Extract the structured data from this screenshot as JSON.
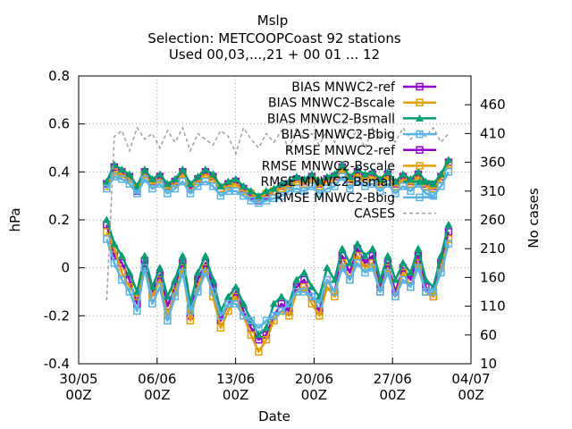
{
  "chart_data": {
    "type": "line",
    "title": "Mslp",
    "subtitle_line1": "Selection: METCOOPCoast     92 stations",
    "subtitle_line2": "Used 00,03,...,21 + 00 01 ... 12",
    "xlabel": "Date",
    "ylabel": "hPa",
    "y2label": "No cases",
    "ylim": [
      -0.4,
      0.8
    ],
    "yticks": [
      "-0.4",
      "-0.2",
      "0",
      "0.2",
      "0.4",
      "0.6",
      "0.8"
    ],
    "y2lim": [
      10,
      510
    ],
    "y2ticks": [
      "10",
      "60",
      "110",
      "160",
      "210",
      "260",
      "310",
      "360",
      "410",
      "460"
    ],
    "xlim": [
      "2018-05-30",
      "2018-07-04"
    ],
    "xticks": [
      {
        "line1": "30/05",
        "line2": "00Z"
      },
      {
        "line1": "06/06",
        "line2": "00Z"
      },
      {
        "line1": "13/06",
        "line2": "00Z"
      },
      {
        "line1": "20/06",
        "line2": "00Z"
      },
      {
        "line1": "27/06",
        "line2": "00Z"
      },
      {
        "line1": "04/07",
        "line2": "00Z"
      }
    ],
    "grid": true,
    "legend_position": "top-right",
    "series": [
      {
        "name": "BIAS MNWC2-ref",
        "color": "#9400d3",
        "marker": "open-square",
        "axis": "left",
        "values": [
          0.18,
          0.05,
          0.02,
          -0.05,
          -0.15,
          0.03,
          -0.1,
          -0.03,
          -0.16,
          -0.08,
          0.02,
          -0.2,
          -0.05,
          0.02,
          -0.08,
          -0.22,
          -0.15,
          -0.1,
          -0.18,
          -0.25,
          -0.3,
          -0.28,
          -0.2,
          -0.15,
          -0.18,
          -0.08,
          -0.05,
          -0.12,
          -0.18,
          -0.05,
          -0.1,
          0.05,
          -0.02,
          0.08,
          0.02,
          0.05,
          -0.08,
          0.02,
          -0.1,
          0.0,
          -0.05,
          0.05,
          -0.08,
          -0.12,
          0.02,
          0.15
        ]
      },
      {
        "name": "BIAS MNWC2-Bscale",
        "color": "#e69f00",
        "marker": "open-square",
        "axis": "left",
        "values": [
          0.15,
          0.08,
          -0.02,
          -0.08,
          -0.12,
          0.0,
          -0.12,
          -0.05,
          -0.2,
          -0.1,
          0.0,
          -0.22,
          -0.08,
          0.0,
          -0.12,
          -0.25,
          -0.18,
          -0.12,
          -0.2,
          -0.28,
          -0.35,
          -0.3,
          -0.22,
          -0.18,
          -0.2,
          -0.1,
          -0.08,
          -0.15,
          -0.2,
          -0.08,
          -0.12,
          0.02,
          -0.05,
          0.05,
          0.0,
          0.02,
          -0.1,
          0.0,
          -0.12,
          -0.02,
          -0.08,
          0.02,
          -0.1,
          -0.12,
          0.0,
          0.12
        ]
      },
      {
        "name": "BIAS MNWC2-Bsmall",
        "color": "#009e73",
        "marker": "filled-triangle",
        "axis": "left",
        "values": [
          0.2,
          0.1,
          0.05,
          -0.02,
          -0.1,
          0.05,
          -0.08,
          0.0,
          -0.12,
          -0.05,
          0.05,
          -0.15,
          -0.02,
          0.05,
          -0.05,
          -0.18,
          -0.12,
          -0.08,
          -0.15,
          -0.22,
          -0.28,
          -0.25,
          -0.15,
          -0.12,
          -0.15,
          -0.05,
          -0.02,
          -0.08,
          -0.12,
          0.0,
          -0.05,
          0.08,
          0.02,
          0.1,
          0.05,
          0.08,
          -0.05,
          0.05,
          -0.05,
          0.02,
          -0.02,
          0.08,
          -0.05,
          -0.08,
          0.05,
          0.18
        ]
      },
      {
        "name": "BIAS MNWC2-Bbig",
        "color": "#56b4e9",
        "marker": "open-square",
        "axis": "left",
        "values": [
          0.12,
          0.02,
          -0.05,
          -0.1,
          -0.18,
          0.0,
          -0.15,
          -0.08,
          -0.22,
          -0.12,
          -0.02,
          -0.18,
          -0.1,
          -0.02,
          -0.1,
          -0.2,
          -0.15,
          -0.15,
          -0.2,
          -0.22,
          -0.25,
          -0.22,
          -0.2,
          -0.18,
          -0.15,
          -0.1,
          -0.1,
          -0.12,
          -0.15,
          -0.05,
          -0.1,
          0.0,
          -0.05,
          0.02,
          -0.02,
          0.0,
          -0.1,
          -0.02,
          -0.12,
          -0.05,
          -0.08,
          0.0,
          -0.1,
          -0.1,
          -0.02,
          0.1
        ]
      },
      {
        "name": "RMSE MNWC2-ref",
        "color": "#9400d3",
        "marker": "open-square",
        "axis": "left",
        "values": [
          0.35,
          0.42,
          0.4,
          0.38,
          0.32,
          0.4,
          0.36,
          0.38,
          0.34,
          0.36,
          0.4,
          0.33,
          0.37,
          0.4,
          0.38,
          0.33,
          0.35,
          0.36,
          0.33,
          0.3,
          0.28,
          0.3,
          0.32,
          0.34,
          0.35,
          0.37,
          0.36,
          0.38,
          0.35,
          0.37,
          0.38,
          0.42,
          0.37,
          0.4,
          0.38,
          0.39,
          0.36,
          0.39,
          0.35,
          0.38,
          0.36,
          0.39,
          0.35,
          0.34,
          0.38,
          0.44
        ]
      },
      {
        "name": "RMSE MNWC2-Bscale",
        "color": "#e69f00",
        "marker": "open-square",
        "axis": "left",
        "values": [
          0.34,
          0.4,
          0.39,
          0.37,
          0.33,
          0.39,
          0.35,
          0.37,
          0.33,
          0.35,
          0.39,
          0.34,
          0.36,
          0.39,
          0.37,
          0.33,
          0.34,
          0.35,
          0.32,
          0.31,
          0.29,
          0.31,
          0.32,
          0.33,
          0.34,
          0.36,
          0.35,
          0.37,
          0.34,
          0.36,
          0.37,
          0.41,
          0.36,
          0.39,
          0.37,
          0.38,
          0.35,
          0.38,
          0.34,
          0.37,
          0.35,
          0.38,
          0.34,
          0.33,
          0.37,
          0.43
        ]
      },
      {
        "name": "RMSE MNWC2-Bsmall",
        "color": "#009e73",
        "marker": "filled-triangle",
        "axis": "left",
        "values": [
          0.36,
          0.43,
          0.41,
          0.39,
          0.34,
          0.41,
          0.37,
          0.39,
          0.35,
          0.37,
          0.41,
          0.35,
          0.38,
          0.41,
          0.39,
          0.34,
          0.36,
          0.37,
          0.34,
          0.32,
          0.3,
          0.32,
          0.33,
          0.35,
          0.36,
          0.38,
          0.37,
          0.39,
          0.36,
          0.38,
          0.39,
          0.43,
          0.38,
          0.41,
          0.39,
          0.4,
          0.37,
          0.4,
          0.36,
          0.39,
          0.37,
          0.4,
          0.36,
          0.35,
          0.39,
          0.45
        ]
      },
      {
        "name": "RMSE MNWC2-Bbig",
        "color": "#56b4e9",
        "marker": "open-square",
        "axis": "left",
        "values": [
          0.33,
          0.38,
          0.37,
          0.35,
          0.31,
          0.37,
          0.33,
          0.35,
          0.31,
          0.33,
          0.36,
          0.31,
          0.34,
          0.36,
          0.34,
          0.3,
          0.32,
          0.32,
          0.3,
          0.28,
          0.27,
          0.28,
          0.29,
          0.3,
          0.32,
          0.33,
          0.32,
          0.34,
          0.31,
          0.33,
          0.34,
          0.38,
          0.33,
          0.36,
          0.34,
          0.35,
          0.32,
          0.35,
          0.31,
          0.34,
          0.32,
          0.35,
          0.31,
          0.3,
          0.34,
          0.4
        ]
      },
      {
        "name": "CASES",
        "color": "#a0a0a0",
        "marker": "dashed",
        "axis": "right",
        "values": [
          120,
          405,
          415,
          380,
          420,
          400,
          410,
          385,
          415,
          395,
          420,
          380,
          410,
          400,
          390,
          415,
          405,
          375,
          420,
          400,
          385,
          410,
          395,
          415,
          380,
          420,
          400,
          410,
          390,
          415,
          395,
          420,
          400,
          415,
          385,
          420,
          405,
          410,
          395,
          420,
          400,
          415,
          405,
          420,
          395,
          410
        ]
      }
    ],
    "legend_entries": [
      "BIAS MNWC2-ref",
      "BIAS MNWC2-Bscale",
      "BIAS MNWC2-Bsmall",
      "BIAS MNWC2-Bbig",
      "RMSE MNWC2-ref",
      "RMSE MNWC2-Bscale",
      "RMSE MNWC2-Bsmall",
      "RMSE MNWC2-Bbig",
      "CASES"
    ]
  }
}
